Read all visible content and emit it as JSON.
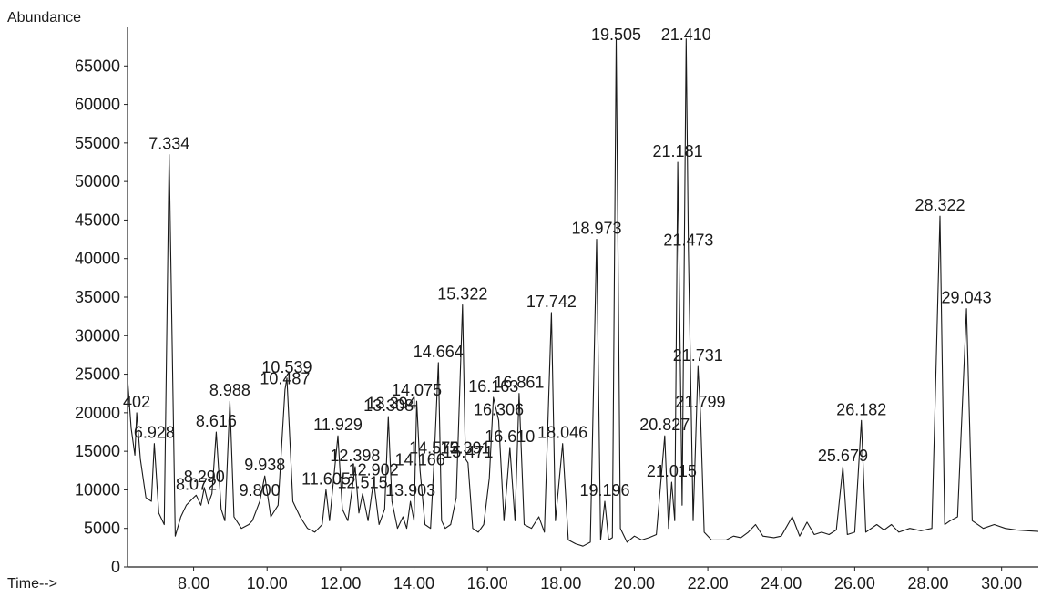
{
  "chart_data": {
    "type": "line",
    "ylabel": "Abundance",
    "xlabel": "Time-->",
    "xlim": [
      6.2,
      31.0
    ],
    "ylim": [
      0,
      70000
    ],
    "yticks": [
      0,
      5000,
      10000,
      15000,
      20000,
      25000,
      30000,
      35000,
      40000,
      45000,
      50000,
      55000,
      60000,
      65000
    ],
    "ytick_labels": [
      "0",
      "5000",
      "10000",
      "15000",
      "20000",
      "25000",
      "30000",
      "35000",
      "40000",
      "45000",
      "50000",
      "55000",
      "60000",
      "65000"
    ],
    "xticks": [
      8,
      10,
      12,
      14,
      16,
      18,
      20,
      22,
      24,
      26,
      28,
      30
    ],
    "xtick_labels": [
      "8.00",
      "10.00",
      "12.00",
      "14.00",
      "16.00",
      "18.00",
      "20.00",
      "22.00",
      "24.00",
      "26.00",
      "28.00",
      "30.00"
    ],
    "grid": false,
    "series": [
      {
        "points": [
          [
            6.2,
            24500
          ],
          [
            6.3,
            18000
          ],
          [
            6.4,
            14500
          ],
          [
            6.45,
            20000
          ],
          [
            6.55,
            14000
          ],
          [
            6.7,
            9000
          ],
          [
            6.85,
            8500
          ],
          [
            6.93,
            16000
          ],
          [
            7.05,
            7000
          ],
          [
            7.2,
            5500
          ],
          [
            7.334,
            53500
          ],
          [
            7.5,
            4000
          ],
          [
            7.65,
            6500
          ],
          [
            7.8,
            8000
          ],
          [
            8.0,
            9000
          ],
          [
            8.07,
            9300
          ],
          [
            8.2,
            8000
          ],
          [
            8.29,
            10300
          ],
          [
            8.4,
            8200
          ],
          [
            8.5,
            9500
          ],
          [
            8.616,
            17500
          ],
          [
            8.75,
            7500
          ],
          [
            8.85,
            6000
          ],
          [
            8.988,
            21500
          ],
          [
            9.1,
            6500
          ],
          [
            9.3,
            5000
          ],
          [
            9.5,
            5500
          ],
          [
            9.6,
            6000
          ],
          [
            9.8,
            8500
          ],
          [
            9.938,
            11800
          ],
          [
            10.1,
            6500
          ],
          [
            10.3,
            8000
          ],
          [
            10.487,
            23000
          ],
          [
            10.539,
            24500
          ],
          [
            10.7,
            8500
          ],
          [
            10.9,
            6500
          ],
          [
            11.1,
            5000
          ],
          [
            11.3,
            4500
          ],
          [
            11.5,
            5500
          ],
          [
            11.605,
            10000
          ],
          [
            11.7,
            6000
          ],
          [
            11.929,
            17000
          ],
          [
            12.05,
            7500
          ],
          [
            12.2,
            6000
          ],
          [
            12.398,
            13000
          ],
          [
            12.5,
            7000
          ],
          [
            12.6,
            9500
          ],
          [
            12.75,
            6000
          ],
          [
            12.9,
            11200
          ],
          [
            13.05,
            5500
          ],
          [
            13.2,
            7500
          ],
          [
            13.3,
            19500
          ],
          [
            13.4,
            8500
          ],
          [
            13.55,
            5000
          ],
          [
            13.7,
            6500
          ],
          [
            13.8,
            5000
          ],
          [
            13.903,
            8500
          ],
          [
            14.0,
            6000
          ],
          [
            14.075,
            21500
          ],
          [
            14.166,
            12500
          ],
          [
            14.3,
            5500
          ],
          [
            14.45,
            5000
          ],
          [
            14.55,
            14000
          ],
          [
            14.664,
            26500
          ],
          [
            14.75,
            6000
          ],
          [
            14.85,
            5000
          ],
          [
            15.0,
            5500
          ],
          [
            15.15,
            9000
          ],
          [
            15.322,
            34000
          ],
          [
            15.4,
            14000
          ],
          [
            15.471,
            13500
          ],
          [
            15.6,
            5000
          ],
          [
            15.75,
            4500
          ],
          [
            15.9,
            5500
          ],
          [
            16.05,
            11500
          ],
          [
            16.163,
            22000
          ],
          [
            16.306,
            19000
          ],
          [
            16.45,
            6000
          ],
          [
            16.61,
            15500
          ],
          [
            16.75,
            6000
          ],
          [
            16.861,
            22500
          ],
          [
            17.0,
            5500
          ],
          [
            17.2,
            5000
          ],
          [
            17.4,
            6500
          ],
          [
            17.55,
            4500
          ],
          [
            17.742,
            33000
          ],
          [
            17.85,
            6000
          ],
          [
            18.046,
            16000
          ],
          [
            18.2,
            3500
          ],
          [
            18.4,
            3000
          ],
          [
            18.6,
            2700
          ],
          [
            18.8,
            3200
          ],
          [
            18.973,
            42500
          ],
          [
            19.08,
            3500
          ],
          [
            19.196,
            8500
          ],
          [
            19.3,
            3500
          ],
          [
            19.4,
            3800
          ],
          [
            19.505,
            68500
          ],
          [
            19.62,
            5000
          ],
          [
            19.8,
            3200
          ],
          [
            20.0,
            4000
          ],
          [
            20.2,
            3500
          ],
          [
            20.4,
            3800
          ],
          [
            20.6,
            4200
          ],
          [
            20.827,
            17000
          ],
          [
            20.93,
            5000
          ],
          [
            21.015,
            11000
          ],
          [
            21.1,
            6000
          ],
          [
            21.181,
            52500
          ],
          [
            21.3,
            8000
          ],
          [
            21.41,
            68500
          ],
          [
            21.473,
            41000
          ],
          [
            21.6,
            6000
          ],
          [
            21.731,
            26000
          ],
          [
            21.799,
            20000
          ],
          [
            21.9,
            4500
          ],
          [
            22.1,
            3500
          ],
          [
            22.3,
            3500
          ],
          [
            22.5,
            3500
          ],
          [
            22.7,
            4000
          ],
          [
            22.9,
            3800
          ],
          [
            23.1,
            4500
          ],
          [
            23.3,
            5500
          ],
          [
            23.5,
            4000
          ],
          [
            23.8,
            3800
          ],
          [
            24.0,
            4000
          ],
          [
            24.3,
            6500
          ],
          [
            24.5,
            4000
          ],
          [
            24.7,
            5800
          ],
          [
            24.9,
            4200
          ],
          [
            25.1,
            4500
          ],
          [
            25.3,
            4200
          ],
          [
            25.5,
            4800
          ],
          [
            25.679,
            13000
          ],
          [
            25.8,
            4200
          ],
          [
            26.0,
            4500
          ],
          [
            26.182,
            19000
          ],
          [
            26.3,
            4500
          ],
          [
            26.6,
            5500
          ],
          [
            26.8,
            4800
          ],
          [
            27.0,
            5500
          ],
          [
            27.2,
            4500
          ],
          [
            27.5,
            5000
          ],
          [
            27.8,
            4700
          ],
          [
            28.1,
            5000
          ],
          [
            28.322,
            45500
          ],
          [
            28.45,
            5500
          ],
          [
            28.6,
            6000
          ],
          [
            28.8,
            6500
          ],
          [
            29.043,
            33500
          ],
          [
            29.2,
            6000
          ],
          [
            29.5,
            5000
          ],
          [
            29.8,
            5500
          ],
          [
            30.1,
            5000
          ],
          [
            30.4,
            4800
          ],
          [
            30.7,
            4700
          ],
          [
            31.0,
            4600
          ]
        ]
      }
    ],
    "peaks": [
      {
        "label": "402",
        "x": 6.45,
        "y": 20000
      },
      {
        "label": "6.928",
        "x": 6.928,
        "y": 16000
      },
      {
        "label": "7.334",
        "x": 7.334,
        "y": 53500
      },
      {
        "label": "8.072",
        "x": 8.072,
        "y": 9300
      },
      {
        "label": "8.290",
        "x": 8.29,
        "y": 10300
      },
      {
        "label": "8.616",
        "x": 8.616,
        "y": 17500
      },
      {
        "label": "8.988",
        "x": 8.988,
        "y": 21500
      },
      {
        "label": "9.800",
        "x": 9.8,
        "y": 8500
      },
      {
        "label": "9.938",
        "x": 9.938,
        "y": 11800
      },
      {
        "label": "10.487",
        "x": 10.487,
        "y": 23000
      },
      {
        "label": "10.539",
        "x": 10.539,
        "y": 24500
      },
      {
        "label": "11.605",
        "x": 11.605,
        "y": 10000
      },
      {
        "label": "11.929",
        "x": 11.929,
        "y": 17000
      },
      {
        "label": "12.398",
        "x": 12.398,
        "y": 13000
      },
      {
        "label": "12.515",
        "x": 12.6,
        "y": 9500
      },
      {
        "label": "12.902",
        "x": 12.9,
        "y": 11200
      },
      {
        "label": "13.308",
        "x": 13.308,
        "y": 19500
      },
      {
        "label": "13.394",
        "x": 13.394,
        "y": 19800
      },
      {
        "label": "13.903",
        "x": 13.903,
        "y": 8500
      },
      {
        "label": "14.075",
        "x": 14.075,
        "y": 21500
      },
      {
        "label": "14.166",
        "x": 14.166,
        "y": 12500
      },
      {
        "label": "14.572",
        "x": 14.55,
        "y": 14000
      },
      {
        "label": "14.664",
        "x": 14.664,
        "y": 26500
      },
      {
        "label": "15.322",
        "x": 15.322,
        "y": 34000
      },
      {
        "label": "15.391",
        "x": 15.4,
        "y": 14000
      },
      {
        "label": "15.471",
        "x": 15.471,
        "y": 13500
      },
      {
        "label": "16.163",
        "x": 16.163,
        "y": 22000
      },
      {
        "label": "16.306",
        "x": 16.306,
        "y": 19000
      },
      {
        "label": "16.610",
        "x": 16.61,
        "y": 15500
      },
      {
        "label": "16.861",
        "x": 16.861,
        "y": 22500
      },
      {
        "label": "17.742",
        "x": 17.742,
        "y": 33000
      },
      {
        "label": "18.046",
        "x": 18.046,
        "y": 16000
      },
      {
        "label": "18.973",
        "x": 18.973,
        "y": 42500
      },
      {
        "label": "19.196",
        "x": 19.196,
        "y": 8500
      },
      {
        "label": "19.505",
        "x": 19.505,
        "y": 68500
      },
      {
        "label": "20.827",
        "x": 20.827,
        "y": 17000
      },
      {
        "label": "21.015",
        "x": 21.015,
        "y": 11000
      },
      {
        "label": "21.181",
        "x": 21.181,
        "y": 52500
      },
      {
        "label": "21.410",
        "x": 21.41,
        "y": 68500
      },
      {
        "label": "21.473",
        "x": 21.473,
        "y": 41000
      },
      {
        "label": "21.731",
        "x": 21.731,
        "y": 26000
      },
      {
        "label": "21.799",
        "x": 21.799,
        "y": 20000
      },
      {
        "label": "25.679",
        "x": 25.679,
        "y": 13000
      },
      {
        "label": "26.182",
        "x": 26.182,
        "y": 19000
      },
      {
        "label": "28.322",
        "x": 28.322,
        "y": 45500
      },
      {
        "label": "29.043",
        "x": 29.043,
        "y": 33500
      }
    ]
  }
}
